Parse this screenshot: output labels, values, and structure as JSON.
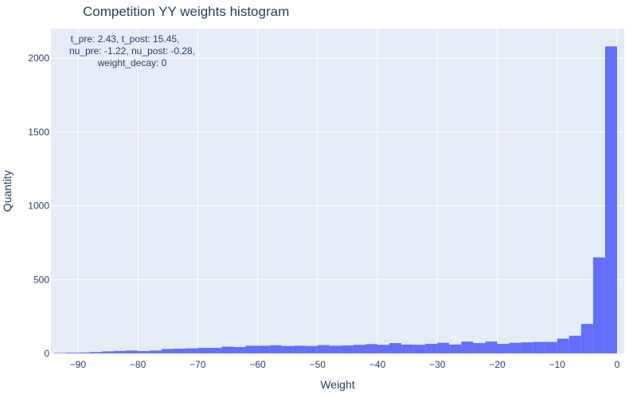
{
  "chart_data": {
    "type": "bar",
    "title": "Competition YY weights histogram",
    "xlabel": "Weight",
    "ylabel": "Quantity",
    "xlim": [
      -94.5,
      1.2
    ],
    "ylim": [
      0,
      2200
    ],
    "x_ticks": [
      {
        "value": -90,
        "label": "−90"
      },
      {
        "value": -80,
        "label": "−80"
      },
      {
        "value": -70,
        "label": "−70"
      },
      {
        "value": -60,
        "label": "−60"
      },
      {
        "value": -50,
        "label": "−50"
      },
      {
        "value": -40,
        "label": "−40"
      },
      {
        "value": -30,
        "label": "−30"
      },
      {
        "value": -20,
        "label": "−20"
      },
      {
        "value": -10,
        "label": "−10"
      },
      {
        "value": 0,
        "label": "0"
      }
    ],
    "y_ticks": [
      {
        "value": 0,
        "label": "0"
      },
      {
        "value": 500,
        "label": "500"
      },
      {
        "value": 1000,
        "label": "1000"
      },
      {
        "value": 1500,
        "label": "1500"
      },
      {
        "value": 2000,
        "label": "2000"
      }
    ],
    "grid": true,
    "bin_width": 2,
    "bin_start": -94,
    "values": [
      3,
      5,
      6,
      9,
      14,
      17,
      20,
      16,
      20,
      30,
      32,
      34,
      38,
      38,
      46,
      43,
      52,
      52,
      55,
      50,
      52,
      50,
      56,
      52,
      54,
      58,
      63,
      58,
      70,
      60,
      59,
      65,
      72,
      60,
      80,
      70,
      80,
      65,
      72,
      75,
      78,
      78,
      100,
      120,
      200,
      650,
      2080
    ],
    "annotation": [
      "t_pre: 2.43, t_post: 15.45,",
      "nu_pre: -1.22, nu_post: -0.28,",
      "weight_decay: 0"
    ],
    "colors": {
      "bar": "#636efa",
      "plot_bg": "#e5ecf6",
      "grid": "#ffffff",
      "text": "#2a3f5f"
    }
  }
}
